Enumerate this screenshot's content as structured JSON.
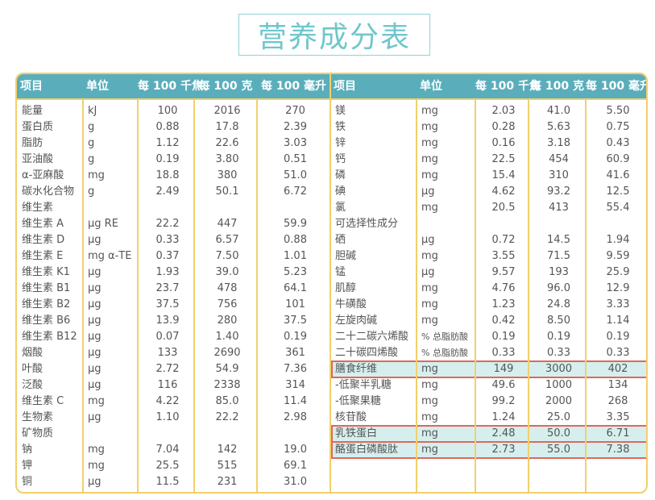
{
  "title": "营养成分表",
  "headers": [
    "项目",
    "单位",
    "每 100 千焦",
    "每 100 克",
    "每 100 毫升"
  ],
  "colors": {
    "header_bg": "#5aaebb",
    "border": "#f3cf6a",
    "highlight_bg": "#d6efee",
    "highlight_border": "#e0675a",
    "title": "#6fc7cc"
  },
  "left_rows": [
    [
      "能量",
      "kJ",
      "100",
      "2016",
      "270"
    ],
    [
      "蛋白质",
      "g",
      "0.88",
      "17.8",
      "2.39"
    ],
    [
      "脂肪",
      "g",
      "1.12",
      "22.6",
      "3.03"
    ],
    [
      "亚油酸",
      "g",
      "0.19",
      "3.80",
      "0.51"
    ],
    [
      "α-亚麻酸",
      "mg",
      "18.8",
      "380",
      "51.0"
    ],
    [
      "碳水化合物",
      "g",
      "2.49",
      "50.1",
      "6.72"
    ],
    [
      "维生素",
      "",
      "",
      "",
      ""
    ],
    [
      "维生素 A",
      "μg RE",
      "22.2",
      "447",
      "59.9"
    ],
    [
      "维生素 D",
      "μg",
      "0.33",
      "6.57",
      "0.88"
    ],
    [
      "维生素 E",
      "mg α-TE",
      "0.37",
      "7.50",
      "1.01"
    ],
    [
      "维生素 K1",
      "μg",
      "1.93",
      "39.0",
      "5.23"
    ],
    [
      "维生素 B1",
      "μg",
      "23.7",
      "478",
      "64.1"
    ],
    [
      "维生素 B2",
      "μg",
      "37.5",
      "756",
      "101"
    ],
    [
      "维生素 B6",
      "μg",
      "13.9",
      "280",
      "37.5"
    ],
    [
      "维生素 B12",
      "μg",
      "0.07",
      "1.40",
      "0.19"
    ],
    [
      "烟酸",
      "μg",
      "133",
      "2690",
      "361"
    ],
    [
      "叶酸",
      "μg",
      "2.72",
      "54.9",
      "7.36"
    ],
    [
      "泛酸",
      "μg",
      "116",
      "2338",
      "314"
    ],
    [
      "维生素 C",
      "mg",
      "4.22",
      "85.0",
      "11.4"
    ],
    [
      "生物素",
      "μg",
      "1.10",
      "22.2",
      "2.98"
    ],
    [
      "矿物质",
      "",
      "",
      "",
      ""
    ],
    [
      "钠",
      "mg",
      "7.04",
      "142",
      "19.0"
    ],
    [
      "钾",
      "mg",
      "25.5",
      "515",
      "69.1"
    ],
    [
      "铜",
      "μg",
      "11.5",
      "231",
      "31.0"
    ]
  ],
  "right_rows": [
    [
      "镁",
      "mg",
      "2.03",
      "41.0",
      "5.50"
    ],
    [
      "铁",
      "mg",
      "0.28",
      "5.63",
      "0.75"
    ],
    [
      "锌",
      "mg",
      "0.16",
      "3.18",
      "0.43"
    ],
    [
      "钙",
      "mg",
      "22.5",
      "454",
      "60.9"
    ],
    [
      "磷",
      "mg",
      "15.4",
      "310",
      "41.6"
    ],
    [
      "碘",
      "μg",
      "4.62",
      "93.2",
      "12.5"
    ],
    [
      "氯",
      "mg",
      "20.5",
      "413",
      "55.4"
    ],
    [
      "可选择性成分",
      "",
      "",
      "",
      ""
    ],
    [
      "硒",
      "μg",
      "0.72",
      "14.5",
      "1.94"
    ],
    [
      "胆碱",
      "mg",
      "3.55",
      "71.5",
      "9.59"
    ],
    [
      "锰",
      "μg",
      "9.57",
      "193",
      "25.9"
    ],
    [
      "肌醇",
      "mg",
      "4.76",
      "96.0",
      "12.9"
    ],
    [
      "牛磺酸",
      "mg",
      "1.23",
      "24.8",
      "3.33"
    ],
    [
      "左旋肉碱",
      "mg",
      "0.42",
      "8.50",
      "1.14"
    ],
    [
      "二十二碳六烯酸",
      "% 总脂肪酸",
      "0.19",
      "0.19",
      "0.19"
    ],
    [
      "二十碳四烯酸",
      "% 总脂肪酸",
      "0.33",
      "0.33",
      "0.33"
    ],
    [
      "膳食纤维",
      "mg",
      "149",
      "3000",
      "402"
    ],
    [
      "-低聚半乳糖",
      "mg",
      "49.6",
      "1000",
      "134"
    ],
    [
      "-低聚果糖",
      "mg",
      "99.2",
      "2000",
      "268"
    ],
    [
      "核苷酸",
      "mg",
      "1.24",
      "25.0",
      "3.35"
    ],
    [
      "乳铁蛋白",
      "mg",
      "2.48",
      "50.0",
      "6.71"
    ],
    [
      "酪蛋白磷酸肽",
      "mg",
      "2.73",
      "55.0",
      "7.38"
    ]
  ],
  "highlighted_right_rows": [
    "膳食纤维",
    "乳铁蛋白",
    "酪蛋白磷酸肽"
  ]
}
